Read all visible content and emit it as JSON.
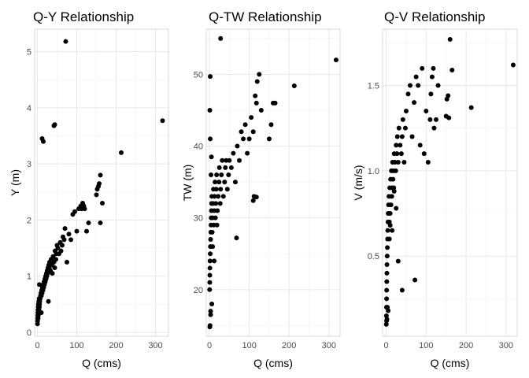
{
  "chart_data": [
    {
      "type": "scatter",
      "title": "Q-Y Relationship",
      "xlabel": "Q (cms)",
      "ylabel": "Y (m)",
      "xlim": [
        -7,
        333
      ],
      "ylim": [
        -0.07,
        5.4
      ],
      "xticks": [
        0,
        100,
        200,
        300
      ],
      "yticks": [
        0,
        1,
        2,
        3,
        4,
        5
      ],
      "xtick_labels": [
        "0",
        "100",
        "200",
        "300"
      ],
      "ytick_labels": [
        "0",
        "1",
        "2",
        "3",
        "4",
        "5"
      ],
      "grid": true,
      "marker_color": "#000000",
      "x": [
        0.3,
        0.5,
        0.8,
        1,
        1.2,
        1.5,
        1.8,
        2,
        2.3,
        2.5,
        3,
        3.5,
        4,
        4.5,
        5,
        5.5,
        6,
        7,
        8,
        9,
        10,
        11,
        12,
        13,
        14,
        15,
        16,
        17,
        18,
        19,
        20,
        21,
        22,
        23,
        24,
        25,
        26,
        27,
        28,
        29,
        30,
        31,
        32,
        33,
        35,
        37,
        38,
        40,
        42,
        44,
        45,
        47,
        48,
        50,
        52,
        55,
        58,
        60,
        63,
        65,
        68,
        70,
        75,
        80,
        85,
        90,
        95,
        100,
        105,
        110,
        112,
        115,
        118,
        120,
        125,
        130,
        150,
        152,
        155,
        157,
        160,
        165,
        12,
        15,
        42,
        44,
        72,
        160,
        213,
        318,
        5,
        28,
        3,
        10
      ],
      "y": [
        0.15,
        0.2,
        0.25,
        0.3,
        0.35,
        0.4,
        0.25,
        0.45,
        0.3,
        0.5,
        0.35,
        0.55,
        0.4,
        0.6,
        0.45,
        0.5,
        0.55,
        0.6,
        0.65,
        0.7,
        0.65,
        0.75,
        0.7,
        0.8,
        0.75,
        0.85,
        0.8,
        0.9,
        0.85,
        0.95,
        0.9,
        1,
        0.95,
        1.05,
        1,
        1.1,
        1.05,
        1.15,
        1.1,
        1.2,
        1.15,
        1.25,
        1.2,
        1.1,
        1.3,
        1.2,
        1.05,
        1.35,
        1.25,
        1.15,
        1.45,
        1.3,
        1.4,
        1.55,
        1.5,
        1.4,
        1.6,
        1.45,
        1.55,
        1.7,
        1.65,
        1.85,
        1.25,
        1.75,
        1.65,
        2.1,
        2.15,
        1.8,
        2.2,
        2.25,
        2.2,
        2.3,
        2.25,
        2.2,
        1.8,
        1.95,
        2.45,
        2.55,
        2.6,
        2.65,
        2.8,
        2.3,
        3.45,
        3.4,
        3.68,
        3.7,
        5.18,
        1.95,
        3.2,
        3.77,
        0.85,
        0.55,
        0.45,
        0.35
      ]
    },
    {
      "type": "scatter",
      "title": "Q-TW Relationship",
      "xlabel": "Q (cms)",
      "ylabel": "TW (m)",
      "xlim": [
        -8,
        328
      ],
      "ylim": [
        13.5,
        56.3
      ],
      "xticks": [
        0,
        100,
        200,
        300
      ],
      "yticks": [
        20,
        30,
        40,
        50
      ],
      "xtick_labels": [
        "0",
        "100",
        "200",
        "300"
      ],
      "ytick_labels": [
        "20",
        "30",
        "40",
        "50"
      ],
      "grid": true,
      "marker_color": "#000000",
      "x": [
        0.5,
        0.8,
        1,
        1.2,
        1.5,
        2,
        2.5,
        3,
        3.5,
        4,
        4.5,
        5,
        5.5,
        6,
        7,
        8,
        9,
        10,
        11,
        12,
        13,
        14,
        15,
        16,
        17,
        18,
        19,
        20,
        22,
        24,
        25,
        27,
        28,
        30,
        32,
        35,
        38,
        40,
        42,
        45,
        48,
        50,
        55,
        60,
        65,
        70,
        75,
        80,
        85,
        90,
        95,
        100,
        105,
        110,
        112,
        115,
        118,
        120,
        125,
        130,
        150,
        155,
        160,
        165,
        1,
        2,
        3,
        1.5,
        28,
        68,
        110,
        118,
        213,
        318,
        2,
        5,
        8,
        12,
        4,
        6,
        3,
        1
      ],
      "y": [
        20,
        21,
        22,
        23,
        24,
        25,
        26,
        27,
        28,
        29,
        30,
        31,
        32,
        33,
        28,
        30,
        32,
        34,
        29,
        31,
        33,
        35,
        30,
        32,
        34,
        36,
        29,
        31,
        33,
        35,
        37,
        32,
        34,
        36,
        38,
        33,
        35,
        37,
        38,
        34,
        36,
        38,
        37,
        39,
        35,
        40,
        38,
        42,
        41,
        43,
        39,
        41,
        44,
        42,
        33,
        47,
        46,
        49,
        50,
        45,
        41,
        43,
        46,
        46,
        45,
        41,
        16.5,
        15,
        55,
        27.2,
        32.4,
        32.9,
        48.4,
        52,
        49.7,
        38.5,
        26,
        24,
        36,
        18,
        17,
        14.8
      ]
    },
    {
      "type": "scatter",
      "title": "Q-V Relationship",
      "xlabel": "Q (cms)",
      "ylabel": "V (m/s)",
      "xlim": [
        -9,
        328
      ],
      "ylim": [
        0.03,
        1.83
      ],
      "xticks": [
        0,
        100,
        200,
        300
      ],
      "yticks": [
        0.5,
        1.0,
        1.5
      ],
      "xtick_labels": [
        "0",
        "100",
        "200",
        "300"
      ],
      "ytick_labels": [
        "0.5",
        "1.0",
        "1.5"
      ],
      "grid": true,
      "marker_color": "#000000",
      "x": [
        0.3,
        0.5,
        0.8,
        1,
        1.2,
        1.5,
        1.8,
        2,
        2.5,
        3,
        3.5,
        4,
        4.5,
        5,
        6,
        7,
        8,
        9,
        10,
        11,
        12,
        13,
        14,
        15,
        16,
        17,
        18,
        19,
        20,
        22,
        24,
        25,
        27,
        28,
        30,
        32,
        35,
        38,
        40,
        42,
        45,
        48,
        50,
        55,
        60,
        65,
        70,
        75,
        80,
        85,
        90,
        95,
        100,
        105,
        110,
        112,
        115,
        118,
        120,
        125,
        130,
        150,
        152,
        155,
        157,
        160,
        165,
        2,
        5,
        30,
        40,
        72,
        213,
        318,
        1,
        3,
        8,
        15,
        25,
        10,
        20
      ],
      "y": [
        0.1,
        0.15,
        0.2,
        0.25,
        0.3,
        0.35,
        0.4,
        0.45,
        0.5,
        0.55,
        0.6,
        0.65,
        0.7,
        0.75,
        0.8,
        0.85,
        0.7,
        0.9,
        0.75,
        0.95,
        0.8,
        1,
        0.85,
        0.9,
        1.05,
        0.95,
        1,
        0.9,
        1.1,
        1.05,
        1,
        1.15,
        1.1,
        1.2,
        1.05,
        1.25,
        1.15,
        1.1,
        1.2,
        1.3,
        1.05,
        1.25,
        1.35,
        1.45,
        1.5,
        1.2,
        1.4,
        1.55,
        1.5,
        1.15,
        1.6,
        1.1,
        1.35,
        1.05,
        1.3,
        1.45,
        1.55,
        1.6,
        1.25,
        1.3,
        1.5,
        1.32,
        1.42,
        1.44,
        1.31,
        1.77,
        1.59,
        0.13,
        0.18,
        0.47,
        0.3,
        0.36,
        1.37,
        1.62,
        0.12,
        0.2,
        0.6,
        0.65,
        0.78,
        0.68,
        0.88
      ]
    }
  ]
}
